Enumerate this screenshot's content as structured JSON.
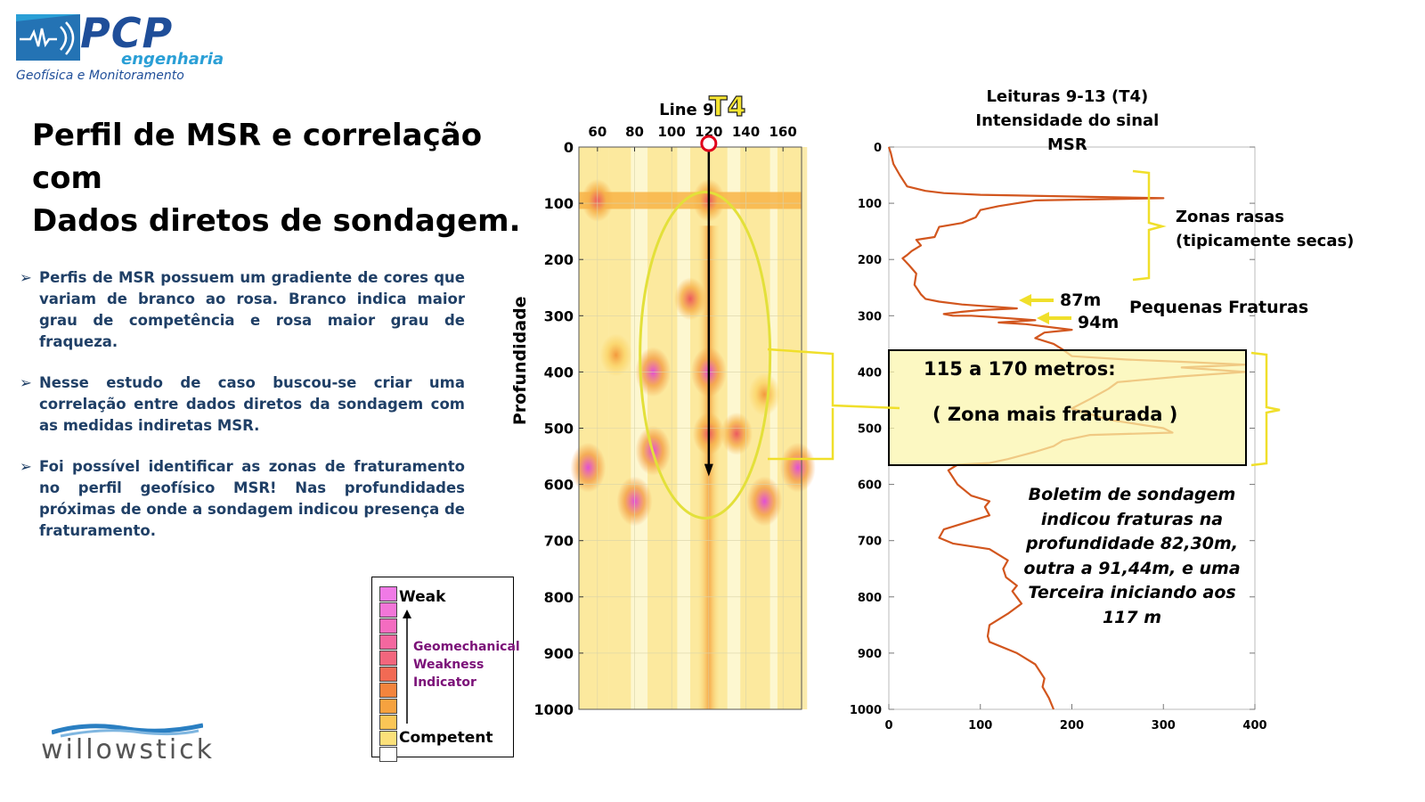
{
  "logo": {
    "company": "PCP",
    "company_sub": "engenharia",
    "tagline": "Geofísica e Monitoramento"
  },
  "title_lines": [
    "Perfil de MSR e correlação com",
    "Dados diretos de sondagem."
  ],
  "bullets": [
    "Perfis de MSR possuem um gradiente de cores que variam de branco ao rosa. Branco indica maior grau de competência e rosa maior grau de fraqueza.",
    "Nesse estudo de caso buscou-se criar uma correlação entre dados diretos da sondagem com as medidas indiretas MSR.",
    "Foi possível identificar as zonas de fraturamento no perfil geofísico MSR! Nas profundidades próximas de onde a sondagem indicou presença de fraturamento."
  ],
  "legend": {
    "top": "Weak",
    "bottom": "Competent",
    "middle_lines": [
      "Geomechanical",
      "Weakness",
      "Indicator"
    ],
    "colors": [
      "#f07ae6",
      "#f276d8",
      "#f46cc0",
      "#f4679f",
      "#f2667d",
      "#f26a54",
      "#f3843d",
      "#f6a23f",
      "#fbc656",
      "#fbe07a",
      "#ffffff"
    ]
  },
  "brand2": "willowstick",
  "chart_data": [
    {
      "type": "heatmap",
      "title_prefix": "Line 9",
      "marker": "T4",
      "ylabel": "Profundidade",
      "x_ticks": [
        60,
        80,
        100,
        120,
        140,
        160
      ],
      "y_ticks": [
        0,
        100,
        200,
        300,
        400,
        500,
        600,
        700,
        800,
        900,
        1000
      ],
      "xlim": [
        50,
        170
      ],
      "ylim": [
        0,
        1000
      ],
      "borehole_x": 120,
      "hotspots": [
        {
          "x": 120,
          "y": 400,
          "level": "pink"
        },
        {
          "x": 90,
          "y": 400,
          "level": "pink"
        },
        {
          "x": 90,
          "y": 540,
          "level": "pink"
        },
        {
          "x": 55,
          "y": 570,
          "level": "pink"
        },
        {
          "x": 80,
          "y": 630,
          "level": "pink"
        },
        {
          "x": 150,
          "y": 630,
          "level": "pink"
        },
        {
          "x": 168,
          "y": 570,
          "level": "pink"
        },
        {
          "x": 120,
          "y": 510,
          "level": "red"
        },
        {
          "x": 135,
          "y": 510,
          "level": "red"
        },
        {
          "x": 110,
          "y": 270,
          "level": "red"
        },
        {
          "x": 120,
          "y": 95,
          "level": "red"
        },
        {
          "x": 60,
          "y": 95,
          "level": "red"
        },
        {
          "x": 150,
          "y": 440,
          "level": "orange"
        },
        {
          "x": 70,
          "y": 370,
          "level": "orange"
        }
      ]
    },
    {
      "type": "line",
      "title_lines": [
        "Leituras 9-13 (T4)",
        "Intensidade do sinal",
        "MSR"
      ],
      "x_ticks": [
        0,
        100,
        200,
        300,
        400
      ],
      "y_ticks": [
        0,
        100,
        200,
        300,
        400,
        500,
        600,
        700,
        800,
        900,
        1000
      ],
      "xlim": [
        0,
        400
      ],
      "ylim": [
        0,
        1000
      ],
      "series": [
        {
          "points": [
            [
              0,
              0
            ],
            [
              2,
              10
            ],
            [
              5,
              30
            ],
            [
              12,
              50
            ],
            [
              20,
              70
            ],
            [
              40,
              78
            ],
            [
              60,
              82
            ],
            [
              100,
              85
            ],
            [
              200,
              88
            ],
            [
              300,
              91
            ],
            [
              160,
              95
            ],
            [
              140,
              100
            ],
            [
              120,
              105
            ],
            [
              100,
              112
            ],
            [
              95,
              125
            ],
            [
              80,
              135
            ],
            [
              55,
              142
            ],
            [
              50,
              160
            ],
            [
              30,
              165
            ],
            [
              35,
              175
            ],
            [
              25,
              185
            ],
            [
              20,
              192
            ],
            [
              15,
              198
            ],
            [
              22,
              210
            ],
            [
              30,
              225
            ],
            [
              28,
              245
            ],
            [
              35,
              262
            ],
            [
              40,
              270
            ],
            [
              55,
              275
            ],
            [
              80,
              280
            ],
            [
              140,
              287
            ],
            [
              100,
              290
            ],
            [
              80,
              293
            ],
            [
              60,
              297
            ],
            [
              70,
              300
            ],
            [
              90,
              300
            ],
            [
              110,
              302
            ],
            [
              160,
              308
            ],
            [
              120,
              312
            ],
            [
              150,
              315
            ],
            [
              200,
              325
            ],
            [
              170,
              330
            ],
            [
              160,
              340
            ],
            [
              180,
              350
            ],
            [
              190,
              360
            ],
            [
              200,
              372
            ],
            [
              260,
              378
            ],
            [
              320,
              382
            ],
            [
              390,
              387
            ],
            [
              320,
              392
            ],
            [
              390,
              400
            ],
            [
              320,
              408
            ],
            [
              250,
              418
            ],
            [
              240,
              430
            ],
            [
              220,
              448
            ],
            [
              200,
              465
            ],
            [
              240,
              485
            ],
            [
              300,
              500
            ],
            [
              310,
              508
            ],
            [
              220,
              512
            ],
            [
              190,
              522
            ],
            [
              180,
              532
            ],
            [
              160,
              542
            ],
            [
              130,
              555
            ],
            [
              110,
              562
            ],
            [
              75,
              565
            ],
            [
              65,
              575
            ],
            [
              75,
              600
            ],
            [
              90,
              620
            ],
            [
              110,
              630
            ],
            [
              105,
              640
            ],
            [
              110,
              655
            ],
            [
              90,
              665
            ],
            [
              60,
              680
            ],
            [
              55,
              695
            ],
            [
              70,
              705
            ],
            [
              110,
              715
            ],
            [
              130,
              735
            ],
            [
              125,
              750
            ],
            [
              128,
              765
            ],
            [
              140,
              780
            ],
            [
              135,
              790
            ],
            [
              145,
              812
            ],
            [
              130,
              830
            ],
            [
              110,
              850
            ],
            [
              108,
              870
            ],
            [
              110,
              880
            ],
            [
              140,
              900
            ],
            [
              160,
              920
            ],
            [
              170,
              945
            ],
            [
              168,
              960
            ],
            [
              175,
              980
            ],
            [
              180,
              1000
            ]
          ]
        }
      ],
      "color": "#d2561e"
    }
  ],
  "annotations": {
    "zonas_line1": "Zonas rasas",
    "zonas_line2": "(tipicamente secas)",
    "arrow1": "87m",
    "arrow2": "94m",
    "pequenas": "Pequenas Fraturas",
    "box_line1": "115 a 170 metros:",
    "box_line2": "( Zona mais fraturada )",
    "boletim_lines": [
      "Boletim de sondagem",
      "indicou fraturas na",
      "profundidade 82,30m,",
      "outra a 91,44m, e uma",
      "Terceira iniciando aos",
      "117 m"
    ]
  },
  "colors": {
    "navy": "#1f4e99",
    "cyan": "#2a9fd6",
    "bullet_text": "#1f3f66",
    "curve": "#d2561e",
    "ellipse": "#e9e43a",
    "bracket": "#f2e233"
  }
}
